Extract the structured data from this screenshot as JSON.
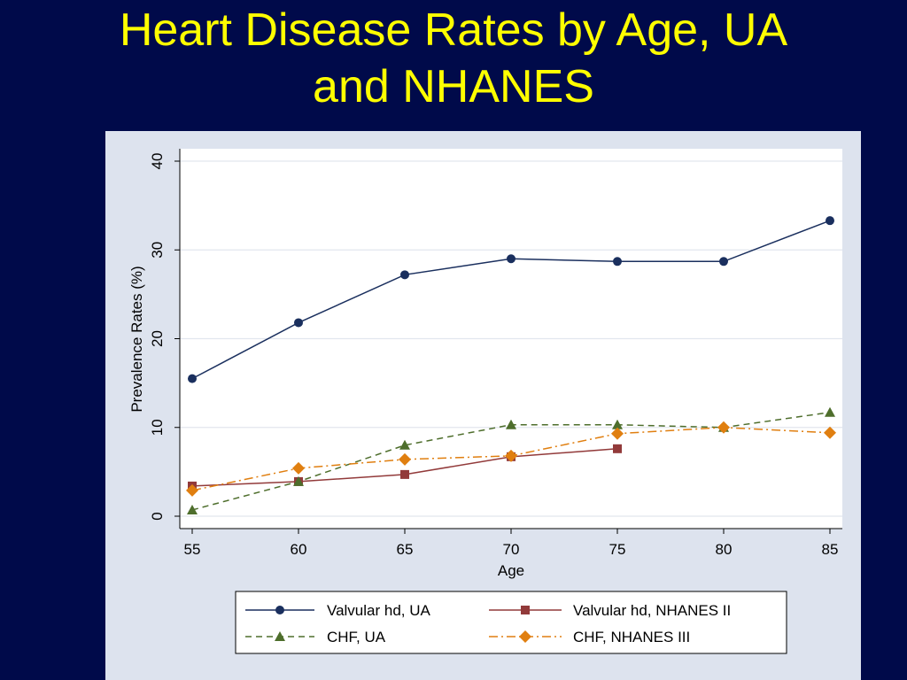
{
  "slide": {
    "title_line1": "Heart Disease Rates by Age, UA",
    "title_line2": "and NHANES"
  },
  "colors": {
    "background": "#000a4a",
    "title": "#ffff00",
    "panel": "#dde3ee",
    "plot": "#ffffff"
  },
  "chart_data": {
    "type": "line",
    "xlabel": "Age",
    "ylabel": "Prevalence Rates (%)",
    "xlim": [
      55,
      85
    ],
    "ylim": [
      0,
      40
    ],
    "xticks": [
      55,
      60,
      65,
      70,
      75,
      80,
      85
    ],
    "yticks": [
      0,
      10,
      20,
      30,
      40
    ],
    "grid": true,
    "legend_position": "bottom",
    "series": [
      {
        "name": "Valvular hd, UA",
        "color": "#1a2f5e",
        "marker": "circle",
        "dash": "solid",
        "x": [
          55,
          60,
          65,
          70,
          75,
          80,
          85
        ],
        "y": [
          15.5,
          21.8,
          27.2,
          29.0,
          28.7,
          28.7,
          33.3
        ]
      },
      {
        "name": "Valvular hd, NHANES II",
        "color": "#923a3a",
        "marker": "square",
        "dash": "solid",
        "x": [
          55,
          60,
          65,
          70,
          75
        ],
        "y": [
          3.4,
          3.9,
          4.7,
          6.7,
          7.6
        ]
      },
      {
        "name": "CHF, UA",
        "color": "#4e6e2c",
        "marker": "triangle",
        "dash": "dash",
        "x": [
          55,
          60,
          65,
          70,
          75,
          80,
          85
        ],
        "y": [
          0.7,
          3.9,
          8.0,
          10.3,
          10.3,
          10.0,
          11.7
        ]
      },
      {
        "name": "CHF, NHANES III",
        "color": "#e07f10",
        "marker": "diamond",
        "dash": "dashdot",
        "x": [
          55,
          60,
          65,
          70,
          75,
          80,
          85
        ],
        "y": [
          2.9,
          5.4,
          6.4,
          6.8,
          9.3,
          10.0,
          9.4
        ]
      }
    ]
  }
}
